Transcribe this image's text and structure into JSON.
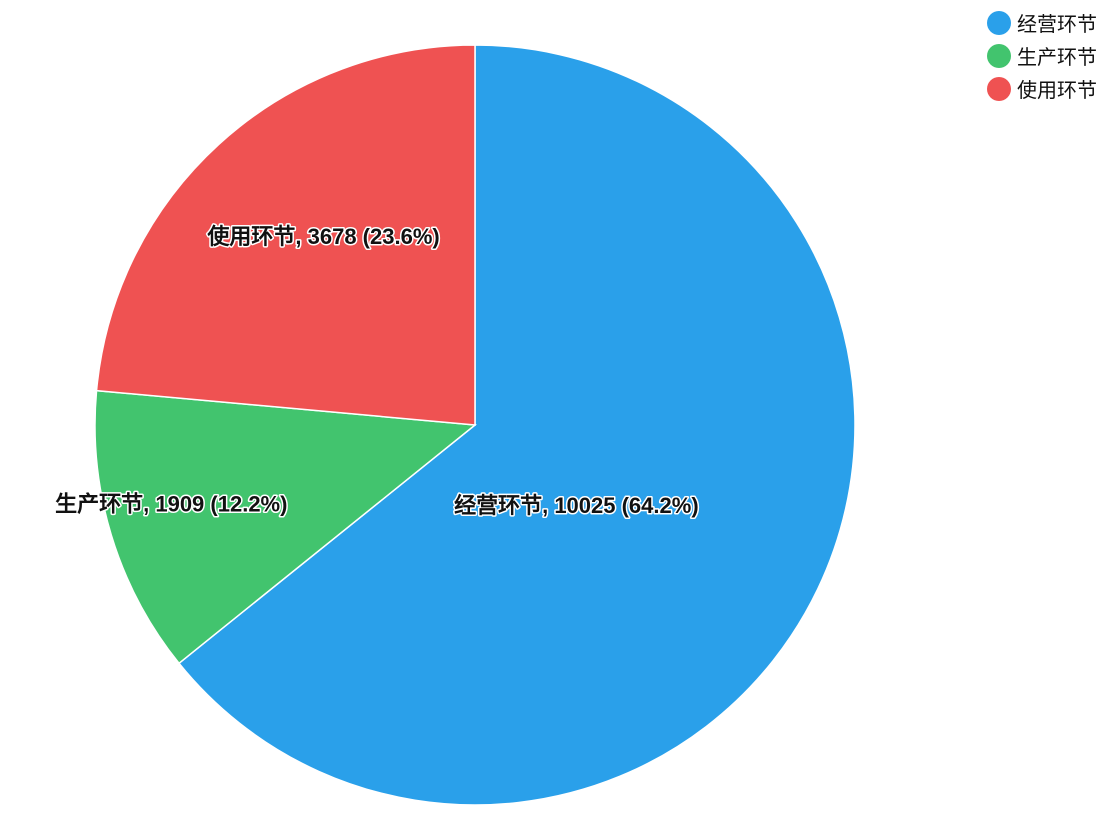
{
  "chart_data": {
    "type": "pie",
    "title": "",
    "legend_position": "top-right",
    "slices": [
      {
        "name": "经营环节",
        "value": 10025,
        "percent": "64.2%",
        "label": "经营环节, 10025 (64.2%)",
        "color": "#2AA0EA"
      },
      {
        "name": "生产环节",
        "value": 1909,
        "percent": "12.2%",
        "label": "生产环节, 1909 (12.2%)",
        "color": "#42C46E"
      },
      {
        "name": "使用环节",
        "value": 3678,
        "percent": "23.6%",
        "label": "使用环节, 3678 (23.6%)",
        "color": "#EF5252"
      }
    ]
  }
}
